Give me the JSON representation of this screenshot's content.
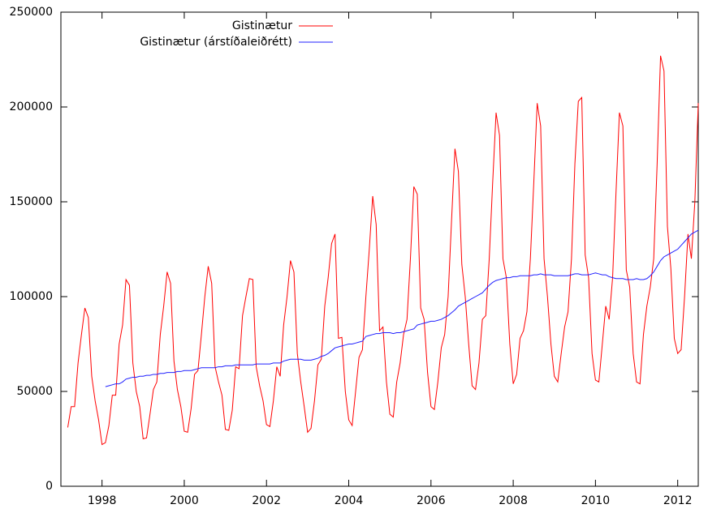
{
  "chart_data": {
    "type": "line",
    "x": [
      1997.167,
      1997.25,
      1997.333,
      1997.417,
      1997.5,
      1997.583,
      1997.667,
      1997.75,
      1997.833,
      1997.917,
      1998,
      1998.083,
      1998.167,
      1998.25,
      1998.333,
      1998.417,
      1998.5,
      1998.583,
      1998.667,
      1998.75,
      1998.833,
      1998.917,
      1999,
      1999.083,
      1999.167,
      1999.25,
      1999.333,
      1999.417,
      1999.5,
      1999.583,
      1999.667,
      1999.75,
      1999.833,
      1999.917,
      2000,
      2000.083,
      2000.167,
      2000.25,
      2000.333,
      2000.417,
      2000.5,
      2000.583,
      2000.667,
      2000.75,
      2000.833,
      2000.917,
      2001,
      2001.083,
      2001.167,
      2001.25,
      2001.333,
      2001.417,
      2001.5,
      2001.583,
      2001.667,
      2001.75,
      2001.833,
      2001.917,
      2002,
      2002.083,
      2002.167,
      2002.25,
      2002.333,
      2002.417,
      2002.5,
      2002.583,
      2002.667,
      2002.75,
      2002.833,
      2002.917,
      2003,
      2003.083,
      2003.167,
      2003.25,
      2003.333,
      2003.417,
      2003.5,
      2003.583,
      2003.667,
      2003.75,
      2003.833,
      2003.917,
      2004,
      2004.083,
      2004.167,
      2004.25,
      2004.333,
      2004.417,
      2004.5,
      2004.583,
      2004.667,
      2004.75,
      2004.833,
      2004.917,
      2005,
      2005.083,
      2005.167,
      2005.25,
      2005.333,
      2005.417,
      2005.5,
      2005.583,
      2005.667,
      2005.75,
      2005.833,
      2005.917,
      2006,
      2006.083,
      2006.167,
      2006.25,
      2006.333,
      2006.417,
      2006.5,
      2006.583,
      2006.667,
      2006.75,
      2006.833,
      2006.917,
      2007,
      2007.083,
      2007.167,
      2007.25,
      2007.333,
      2007.417,
      2007.5,
      2007.583,
      2007.667,
      2007.75,
      2007.833,
      2007.917,
      2008,
      2008.083,
      2008.167,
      2008.25,
      2008.333,
      2008.417,
      2008.5,
      2008.583,
      2008.667,
      2008.75,
      2008.833,
      2008.917,
      2009,
      2009.083,
      2009.167,
      2009.25,
      2009.333,
      2009.417,
      2009.5,
      2009.583,
      2009.667,
      2009.75,
      2009.833,
      2009.917,
      2010,
      2010.083,
      2010.167,
      2010.25,
      2010.333,
      2010.417,
      2010.5,
      2010.583,
      2010.667,
      2010.75,
      2010.833,
      2010.917,
      2011,
      2011.083,
      2011.167,
      2011.25,
      2011.333,
      2011.417,
      2011.5,
      2011.583,
      2011.667,
      2011.75,
      2011.833,
      2011.917,
      2012,
      2012.083,
      2012.167,
      2012.25,
      2012.333,
      2012.417,
      2012.5
    ],
    "series": [
      {
        "name": "Gistinætur",
        "color": "#ff0000",
        "values": [
          31000,
          42000,
          42000,
          65000,
          80000,
          94000,
          89000,
          58000,
          45000,
          35000,
          22000,
          23000,
          32000,
          48000,
          48000,
          75000,
          85000,
          109000,
          106000,
          65000,
          50000,
          42000,
          25000,
          25500,
          38000,
          51000,
          55000,
          80000,
          95000,
          113000,
          107000,
          66000,
          51000,
          42000,
          29000,
          28500,
          41000,
          59000,
          61000,
          80000,
          100000,
          116000,
          107000,
          63000,
          55000,
          48000,
          30000,
          29500,
          40000,
          63000,
          62000,
          90000,
          100000,
          109500,
          109000,
          63000,
          53000,
          45000,
          32500,
          31500,
          45000,
          63000,
          58000,
          85000,
          100000,
          119000,
          113000,
          70000,
          55000,
          42000,
          28500,
          30500,
          45000,
          64000,
          67000,
          95000,
          110000,
          128000,
          133000,
          78000,
          78500,
          50000,
          35000,
          32000,
          50000,
          68000,
          72000,
          100000,
          125000,
          153000,
          138000,
          82000,
          84000,
          55000,
          38000,
          36500,
          55000,
          65000,
          80000,
          88000,
          120000,
          158000,
          154000,
          94000,
          88000,
          60000,
          42000,
          40500,
          55000,
          73000,
          80000,
          100000,
          140000,
          178000,
          166000,
          117000,
          100000,
          75000,
          53000,
          51000,
          65000,
          88000,
          90000,
          120000,
          160000,
          197000,
          185000,
          120000,
          110000,
          75000,
          54000,
          59000,
          78000,
          82000,
          92000,
          120000,
          160000,
          202000,
          190000,
          120000,
          100000,
          75000,
          58000,
          55000,
          70000,
          84000,
          92000,
          120000,
          170000,
          203000,
          205000,
          122000,
          110000,
          70000,
          56000,
          55000,
          75000,
          95000,
          88000,
          110000,
          155000,
          197000,
          190000,
          114000,
          105000,
          70000,
          55000,
          54000,
          80000,
          95000,
          105000,
          120000,
          170000,
          227000,
          219000,
          137000,
          115000,
          78000,
          70000,
          72000,
          100000,
          133000,
          120000,
          150000,
          202000
        ]
      },
      {
        "name": "Gistinætur (árstíðaleiðrétt)",
        "color": "#2020ff",
        "values": [
          null,
          null,
          null,
          null,
          null,
          null,
          null,
          null,
          null,
          null,
          null,
          52500,
          53000,
          53500,
          54000,
          54000,
          55000,
          56500,
          57000,
          57500,
          57500,
          58000,
          58000,
          58500,
          58500,
          59000,
          59000,
          59500,
          59500,
          60000,
          60000,
          60000,
          60500,
          60500,
          61000,
          61000,
          61000,
          61500,
          62000,
          62500,
          62500,
          62500,
          62500,
          62500,
          63000,
          63000,
          63500,
          63500,
          63500,
          64000,
          64000,
          64000,
          64000,
          64000,
          64000,
          64500,
          64500,
          64500,
          64500,
          64500,
          65000,
          65000,
          65000,
          66000,
          66500,
          67000,
          67000,
          67000,
          67000,
          66500,
          66500,
          66500,
          67000,
          67500,
          68500,
          69000,
          70000,
          71500,
          73000,
          73500,
          74000,
          74500,
          75000,
          75000,
          75500,
          76000,
          76500,
          79000,
          79500,
          80000,
          80500,
          80500,
          81000,
          81000,
          81000,
          80500,
          81000,
          81000,
          81500,
          82000,
          82500,
          83000,
          85000,
          85500,
          86000,
          86500,
          87000,
          87000,
          87500,
          88000,
          89000,
          90000,
          91500,
          93000,
          95000,
          96000,
          97000,
          98000,
          99000,
          100000,
          101000,
          102000,
          104000,
          106000,
          107500,
          108500,
          109000,
          109500,
          110000,
          110000,
          110500,
          110500,
          111000,
          111000,
          111000,
          111000,
          111500,
          111500,
          112000,
          111500,
          111500,
          111500,
          111000,
          111000,
          111000,
          111000,
          111000,
          111500,
          112000,
          112000,
          111500,
          111500,
          111500,
          112000,
          112500,
          112000,
          111500,
          111500,
          110500,
          110000,
          109500,
          109500,
          109500,
          109000,
          109000,
          109000,
          109500,
          109000,
          109000,
          109500,
          111000,
          113000,
          116000,
          119000,
          121000,
          122000,
          123000,
          124000,
          125000,
          127000,
          129000,
          131000,
          133000,
          134000,
          135000
        ]
      }
    ],
    "xlim": [
      1997,
      2012.5
    ],
    "xticks": [
      1998,
      2000,
      2002,
      2004,
      2006,
      2008,
      2010,
      2012
    ],
    "ylim": [
      0,
      250000
    ],
    "yticks": [
      0,
      50000,
      100000,
      150000,
      200000,
      250000
    ]
  }
}
